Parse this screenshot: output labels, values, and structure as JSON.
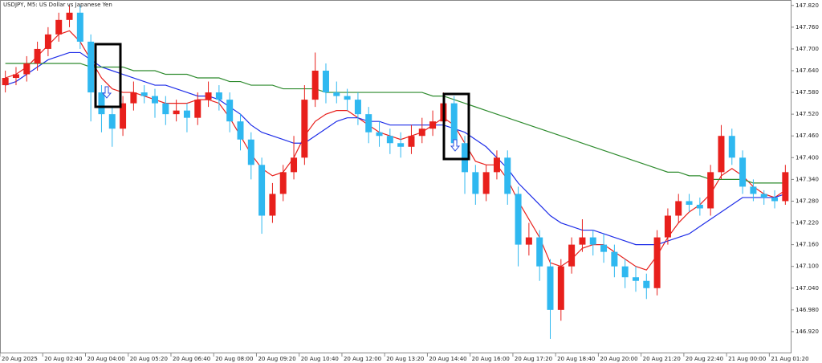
{
  "chart_data": {
    "type": "candlestick",
    "title": "USDJPY, M5:  US Dollar vs Japanese Yen",
    "up_color": "#e8201c",
    "down_color": "#2fb8f0",
    "open": [
      147.6,
      147.62,
      147.63,
      147.66,
      147.7,
      147.74,
      147.78,
      147.8,
      147.72,
      147.58,
      147.52,
      147.48,
      147.55,
      147.58,
      147.57,
      147.55,
      147.52,
      147.53,
      147.51,
      147.56,
      147.58,
      147.56,
      147.5,
      147.45,
      147.38,
      147.24,
      147.3,
      147.36,
      147.4,
      147.56,
      147.64,
      147.58,
      147.57,
      147.56,
      147.52,
      147.47,
      147.46,
      147.44,
      147.43,
      147.46,
      147.48,
      147.5,
      147.55,
      147.44,
      147.36,
      147.3,
      147.36,
      147.4,
      147.3,
      147.16,
      147.18,
      147.1,
      146.98,
      147.1,
      147.16,
      147.18,
      147.16,
      147.14,
      147.1,
      147.07,
      147.06,
      147.04,
      147.18,
      147.24,
      147.28,
      147.27,
      147.26,
      147.36,
      147.46,
      147.4,
      147.32,
      147.3,
      147.29,
      147.28
    ],
    "high": [
      147.64,
      147.65,
      147.68,
      147.72,
      147.76,
      147.8,
      147.82,
      147.82,
      147.74,
      147.6,
      147.54,
      147.57,
      147.61,
      147.6,
      147.59,
      147.57,
      147.56,
      147.55,
      147.58,
      147.61,
      147.6,
      147.58,
      147.52,
      147.47,
      147.4,
      147.33,
      147.38,
      147.46,
      147.6,
      147.69,
      147.66,
      147.61,
      147.59,
      147.58,
      147.54,
      147.5,
      147.48,
      147.47,
      147.49,
      147.51,
      147.53,
      147.58,
      147.57,
      147.46,
      147.38,
      147.38,
      147.42,
      147.42,
      147.32,
      147.22,
      147.2,
      147.12,
      147.12,
      147.18,
      147.23,
      147.2,
      147.19,
      147.16,
      147.12,
      147.1,
      147.08,
      147.2,
      147.26,
      147.3,
      147.3,
      147.29,
      147.38,
      147.49,
      147.48,
      147.42,
      147.34,
      147.31,
      147.31,
      147.38
    ],
    "low": [
      147.58,
      147.6,
      147.61,
      147.64,
      147.68,
      147.72,
      147.76,
      147.7,
      147.5,
      147.47,
      147.43,
      147.46,
      147.53,
      147.55,
      147.51,
      147.49,
      147.5,
      147.47,
      147.49,
      147.54,
      147.53,
      147.47,
      147.42,
      147.34,
      147.19,
      147.22,
      147.28,
      147.34,
      147.38,
      147.54,
      147.55,
      147.55,
      147.53,
      147.49,
      147.44,
      147.43,
      147.41,
      147.4,
      147.41,
      147.44,
      147.46,
      147.48,
      147.42,
      147.3,
      147.27,
      147.28,
      147.34,
      147.27,
      147.1,
      147.13,
      147.06,
      146.9,
      146.95,
      147.08,
      147.14,
      147.13,
      147.11,
      147.07,
      147.04,
      147.03,
      147.01,
      147.02,
      147.16,
      147.22,
      147.25,
      147.24,
      147.24,
      147.34,
      147.38,
      147.3,
      147.28,
      147.27,
      147.26,
      147.27
    ],
    "close": [
      147.62,
      147.63,
      147.66,
      147.7,
      147.74,
      147.78,
      147.8,
      147.72,
      147.58,
      147.52,
      147.48,
      147.55,
      147.58,
      147.57,
      147.55,
      147.52,
      147.53,
      147.51,
      147.56,
      147.58,
      147.56,
      147.5,
      147.45,
      147.38,
      147.24,
      147.3,
      147.36,
      147.4,
      147.56,
      147.64,
      147.58,
      147.57,
      147.56,
      147.52,
      147.47,
      147.46,
      147.44,
      147.43,
      147.46,
      147.48,
      147.5,
      147.55,
      147.44,
      147.36,
      147.3,
      147.36,
      147.4,
      147.3,
      147.16,
      147.18,
      147.1,
      146.98,
      147.1,
      147.16,
      147.18,
      147.16,
      147.14,
      147.1,
      147.07,
      147.06,
      147.04,
      147.18,
      147.24,
      147.28,
      147.27,
      147.26,
      147.36,
      147.46,
      147.4,
      147.32,
      147.3,
      147.29,
      147.28,
      147.36
    ],
    "series": [
      {
        "color": "#e8201c",
        "values": [
          147.62,
          147.63,
          147.65,
          147.68,
          147.71,
          147.74,
          147.75,
          147.72,
          147.67,
          147.62,
          147.59,
          147.58,
          147.58,
          147.57,
          147.56,
          147.55,
          147.55,
          147.55,
          147.56,
          147.56,
          147.55,
          147.51,
          147.46,
          147.41,
          147.37,
          147.35,
          147.36,
          147.4,
          147.46,
          147.5,
          147.52,
          147.53,
          147.53,
          147.51,
          147.49,
          147.47,
          147.46,
          147.45,
          147.46,
          147.47,
          147.49,
          147.51,
          147.49,
          147.44,
          147.39,
          147.38,
          147.38,
          147.34,
          147.28,
          147.23,
          147.18,
          147.11,
          147.1,
          147.12,
          147.15,
          147.16,
          147.16,
          147.14,
          147.12,
          147.1,
          147.09,
          147.13,
          147.18,
          147.22,
          147.25,
          147.27,
          147.3,
          147.35,
          147.37,
          147.35,
          147.32,
          147.3,
          147.29,
          147.31
        ]
      },
      {
        "color": "#1f2ee8",
        "values": [
          147.6,
          147.61,
          147.63,
          147.65,
          147.67,
          147.68,
          147.69,
          147.69,
          147.67,
          147.65,
          147.64,
          147.63,
          147.62,
          147.61,
          147.6,
          147.6,
          147.59,
          147.58,
          147.57,
          147.57,
          147.56,
          147.54,
          147.52,
          147.49,
          147.47,
          147.46,
          147.45,
          147.44,
          147.44,
          147.46,
          147.48,
          147.5,
          147.51,
          147.51,
          147.5,
          147.5,
          147.49,
          147.49,
          147.49,
          147.49,
          147.49,
          147.49,
          147.48,
          147.47,
          147.45,
          147.43,
          147.4,
          147.37,
          147.33,
          147.3,
          147.27,
          147.24,
          147.22,
          147.21,
          147.2,
          147.2,
          147.19,
          147.18,
          147.17,
          147.16,
          147.16,
          147.16,
          147.17,
          147.18,
          147.19,
          147.21,
          147.23,
          147.25,
          147.27,
          147.29,
          147.29,
          147.29,
          147.29,
          147.3
        ]
      },
      {
        "color": "#2e8b2e",
        "values": [
          147.66,
          147.66,
          147.66,
          147.66,
          147.66,
          147.66,
          147.66,
          147.66,
          147.65,
          147.65,
          147.65,
          147.65,
          147.64,
          147.64,
          147.64,
          147.63,
          147.63,
          147.63,
          147.62,
          147.62,
          147.62,
          147.61,
          147.61,
          147.6,
          147.6,
          147.6,
          147.59,
          147.59,
          147.59,
          147.59,
          147.58,
          147.58,
          147.58,
          147.58,
          147.58,
          147.58,
          147.58,
          147.58,
          147.58,
          147.58,
          147.57,
          147.57,
          147.56,
          147.55,
          147.54,
          147.53,
          147.52,
          147.51,
          147.5,
          147.49,
          147.48,
          147.47,
          147.46,
          147.45,
          147.44,
          147.43,
          147.42,
          147.41,
          147.4,
          147.39,
          147.38,
          147.37,
          147.36,
          147.36,
          147.35,
          147.35,
          147.34,
          147.34,
          147.34,
          147.34,
          147.33,
          147.33,
          147.33,
          147.33
        ]
      }
    ],
    "ylim": [
      146.86,
      147.835
    ],
    "yticks": [
      {
        "value": 147.82,
        "label": "147.820"
      },
      {
        "value": 147.76,
        "label": "147.760"
      },
      {
        "value": 147.7,
        "label": "147.700"
      },
      {
        "value": 147.64,
        "label": "147.640"
      },
      {
        "value": 147.58,
        "label": "147.580"
      },
      {
        "value": 147.52,
        "label": "147.520"
      },
      {
        "value": 147.46,
        "label": "147.460"
      },
      {
        "value": 147.4,
        "label": "147.400"
      },
      {
        "value": 147.34,
        "label": "147.340"
      },
      {
        "value": 147.28,
        "label": "147.280"
      },
      {
        "value": 147.22,
        "label": "147.220"
      },
      {
        "value": 147.16,
        "label": "147.160"
      },
      {
        "value": 147.1,
        "label": "147.100"
      },
      {
        "value": 147.04,
        "label": "147.040"
      },
      {
        "value": 146.98,
        "label": "146.980"
      },
      {
        "value": 146.92,
        "label": "146.920"
      }
    ],
    "xticks": [
      {
        "value": 0,
        "label": "20 Aug 2025"
      },
      {
        "value": 4,
        "label": "20 Aug 02:40"
      },
      {
        "value": 8,
        "label": "20 Aug 04:00"
      },
      {
        "value": 12,
        "label": "20 Aug 05:20"
      },
      {
        "value": 16,
        "label": "20 Aug 06:40"
      },
      {
        "value": 20,
        "label": "20 Aug 08:00"
      },
      {
        "value": 24,
        "label": "20 Aug 09:20"
      },
      {
        "value": 28,
        "label": "20 Aug 10:40"
      },
      {
        "value": 32,
        "label": "20 Aug 12:00"
      },
      {
        "value": 36,
        "label": "20 Aug 13:20"
      },
      {
        "value": 40,
        "label": "20 Aug 14:40"
      },
      {
        "value": 44,
        "label": "20 Aug 16:00"
      },
      {
        "value": 48,
        "label": "20 Aug 17:20"
      },
      {
        "value": 52,
        "label": "20 Aug 18:40"
      },
      {
        "value": 56,
        "label": "20 Aug 20:00"
      },
      {
        "value": 60,
        "label": "20 Aug 21:20"
      },
      {
        "value": 64,
        "label": "20 Aug 22:40"
      },
      {
        "value": 68,
        "label": "21 Aug 00:00"
      },
      {
        "value": 72,
        "label": "21 Aug 01:20"
      }
    ],
    "grid": false
  }
}
